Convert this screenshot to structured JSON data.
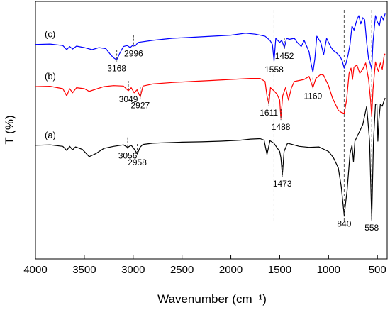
{
  "chart_data": {
    "type": "line",
    "title": "",
    "xlabel": "Wavenumber (cm⁻¹)",
    "ylabel": "T (%)",
    "xlim": [
      4000,
      400
    ],
    "x_reversed": true,
    "y_ticks_shown": false,
    "x_ticks": [
      "4000",
      "3500",
      "3000",
      "2500",
      "2000",
      "1500",
      "1000",
      "500"
    ],
    "series": [
      {
        "name": "(a)",
        "color": "#000000",
        "points": [
          [
            4000,
            38.0
          ],
          [
            3850,
            38.2
          ],
          [
            3720,
            37.5
          ],
          [
            3680,
            35.5
          ],
          [
            3650,
            37.5
          ],
          [
            3620,
            35.8
          ],
          [
            3590,
            37.2
          ],
          [
            3520,
            36.0
          ],
          [
            3450,
            32.5
          ],
          [
            3380,
            34.0
          ],
          [
            3300,
            36.5
          ],
          [
            3200,
            37.5
          ],
          [
            3100,
            38.2
          ],
          [
            3056,
            37.0
          ],
          [
            3020,
            38.0
          ],
          [
            2990,
            36.2
          ],
          [
            2958,
            33.8
          ],
          [
            2930,
            37.0
          ],
          [
            2900,
            38.4
          ],
          [
            2800,
            39.0
          ],
          [
            2700,
            39.2
          ],
          [
            2500,
            39.5
          ],
          [
            2300,
            39.7
          ],
          [
            2100,
            40.0
          ],
          [
            1900,
            40.5
          ],
          [
            1800,
            41.0
          ],
          [
            1700,
            41.2
          ],
          [
            1660,
            40.5
          ],
          [
            1630,
            33.5
          ],
          [
            1600,
            40.2
          ],
          [
            1560,
            39.0
          ],
          [
            1530,
            37.0
          ],
          [
            1500,
            35.0
          ],
          [
            1488,
            32.0
          ],
          [
            1473,
            23.5
          ],
          [
            1455,
            35.0
          ],
          [
            1420,
            39.0
          ],
          [
            1380,
            38.5
          ],
          [
            1300,
            37.5
          ],
          [
            1200,
            37.0
          ],
          [
            1100,
            37.2
          ],
          [
            1000,
            35.0
          ],
          [
            950,
            32.0
          ],
          [
            900,
            27.0
          ],
          [
            870,
            18.0
          ],
          [
            840,
            4.0
          ],
          [
            810,
            16.0
          ],
          [
            780,
            34.0
          ],
          [
            760,
            38.0
          ],
          [
            745,
            30.0
          ],
          [
            730,
            40.0
          ],
          [
            700,
            43.0
          ],
          [
            650,
            48.0
          ],
          [
            610,
            57.0
          ],
          [
            580,
            40.0
          ],
          [
            558,
            2.0
          ],
          [
            540,
            40.0
          ],
          [
            520,
            58.0
          ],
          [
            505,
            58.0
          ],
          [
            495,
            40.0
          ],
          [
            485,
            50.0
          ],
          [
            470,
            58.0
          ],
          [
            450,
            57.0
          ],
          [
            430,
            60.0
          ],
          [
            420,
            61.0
          ]
        ]
      },
      {
        "name": "(b)",
        "color": "#ff0000",
        "points": [
          [
            4000,
            66.5
          ],
          [
            3850,
            66.7
          ],
          [
            3720,
            65.5
          ],
          [
            3680,
            62.0
          ],
          [
            3650,
            65.5
          ],
          [
            3620,
            63.5
          ],
          [
            3580,
            66.0
          ],
          [
            3500,
            65.5
          ],
          [
            3450,
            64.2
          ],
          [
            3400,
            65.0
          ],
          [
            3300,
            66.5
          ],
          [
            3200,
            67.0
          ],
          [
            3100,
            66.8
          ],
          [
            3049,
            64.5
          ],
          [
            3020,
            66.0
          ],
          [
            2990,
            63.5
          ],
          [
            2960,
            65.0
          ],
          [
            2927,
            61.5
          ],
          [
            2900,
            66.8
          ],
          [
            2800,
            67.8
          ],
          [
            2600,
            68.5
          ],
          [
            2400,
            69.0
          ],
          [
            2200,
            69.5
          ],
          [
            2000,
            70.0
          ],
          [
            1800,
            70.5
          ],
          [
            1700,
            70.5
          ],
          [
            1650,
            69.0
          ],
          [
            1630,
            62.0
          ],
          [
            1611,
            58.0
          ],
          [
            1595,
            66.0
          ],
          [
            1560,
            64.5
          ],
          [
            1530,
            63.0
          ],
          [
            1500,
            60.0
          ],
          [
            1488,
            51.0
          ],
          [
            1470,
            62.0
          ],
          [
            1440,
            66.0
          ],
          [
            1410,
            60.0
          ],
          [
            1380,
            66.0
          ],
          [
            1350,
            69.0
          ],
          [
            1300,
            69.5
          ],
          [
            1250,
            70.0
          ],
          [
            1200,
            71.5
          ],
          [
            1160,
            66.0
          ],
          [
            1130,
            70.5
          ],
          [
            1080,
            72.5
          ],
          [
            1050,
            72.0
          ],
          [
            1000,
            67.0
          ],
          [
            960,
            61.0
          ],
          [
            930,
            58.0
          ],
          [
            900,
            55.0
          ],
          [
            870,
            54.0
          ],
          [
            840,
            53.5
          ],
          [
            815,
            60.0
          ],
          [
            790,
            73.0
          ],
          [
            770,
            75.5
          ],
          [
            755,
            70.0
          ],
          [
            740,
            76.0
          ],
          [
            710,
            77.0
          ],
          [
            680,
            73.0
          ],
          [
            650,
            75.0
          ],
          [
            620,
            78.0
          ],
          [
            590,
            70.0
          ],
          [
            570,
            60.0
          ],
          [
            558,
            52.0
          ],
          [
            545,
            65.0
          ],
          [
            520,
            78.5
          ],
          [
            505,
            76.0
          ],
          [
            490,
            74.0
          ],
          [
            470,
            78.0
          ],
          [
            450,
            75.0
          ],
          [
            430,
            82.0
          ],
          [
            420,
            82.5
          ]
        ]
      },
      {
        "name": "(c)",
        "color": "#0000ff",
        "points": [
          [
            4000,
            87.0
          ],
          [
            3850,
            87.2
          ],
          [
            3720,
            86.5
          ],
          [
            3680,
            84.5
          ],
          [
            3650,
            86.0
          ],
          [
            3620,
            84.8
          ],
          [
            3580,
            86.2
          ],
          [
            3500,
            85.5
          ],
          [
            3420,
            84.5
          ],
          [
            3350,
            85.5
          ],
          [
            3280,
            85.0
          ],
          [
            3230,
            82.0
          ],
          [
            3200,
            80.5
          ],
          [
            3168,
            79.5
          ],
          [
            3140,
            82.5
          ],
          [
            3100,
            86.0
          ],
          [
            3060,
            86.5
          ],
          [
            3030,
            85.5
          ],
          [
            3000,
            86.8
          ],
          [
            2980,
            86.2
          ],
          [
            2950,
            88.0
          ],
          [
            2800,
            89.0
          ],
          [
            2600,
            90.0
          ],
          [
            2400,
            90.5
          ],
          [
            2200,
            91.0
          ],
          [
            2000,
            91.5
          ],
          [
            1850,
            92.5
          ],
          [
            1750,
            92.0
          ],
          [
            1650,
            91.0
          ],
          [
            1600,
            89.0
          ],
          [
            1575,
            87.0
          ],
          [
            1558,
            79.0
          ],
          [
            1540,
            90.0
          ],
          [
            1500,
            88.0
          ],
          [
            1480,
            89.0
          ],
          [
            1452,
            85.5
          ],
          [
            1430,
            90.0
          ],
          [
            1400,
            89.5
          ],
          [
            1350,
            90.0
          ],
          [
            1320,
            88.0
          ],
          [
            1280,
            86.0
          ],
          [
            1250,
            89.0
          ],
          [
            1200,
            83.5
          ],
          [
            1180,
            78.0
          ],
          [
            1160,
            73.5
          ],
          [
            1140,
            80.0
          ],
          [
            1120,
            91.0
          ],
          [
            1080,
            88.0
          ],
          [
            1050,
            82.0
          ],
          [
            1020,
            90.0
          ],
          [
            980,
            86.0
          ],
          [
            950,
            84.0
          ],
          [
            920,
            83.0
          ],
          [
            880,
            81.0
          ],
          [
            860,
            79.0
          ],
          [
            840,
            75.5
          ],
          [
            820,
            78.0
          ],
          [
            800,
            82.0
          ],
          [
            780,
            87.0
          ],
          [
            760,
            96.0
          ],
          [
            740,
            94.0
          ],
          [
            710,
            99.0
          ],
          [
            690,
            101.0
          ],
          [
            670,
            97.0
          ],
          [
            650,
            100.0
          ],
          [
            630,
            99.0
          ],
          [
            610,
            88.0
          ],
          [
            590,
            80.0
          ],
          [
            575,
            78.0
          ],
          [
            558,
            75.0
          ],
          [
            545,
            88.0
          ],
          [
            520,
            101.0
          ],
          [
            500,
            98.0
          ],
          [
            480,
            96.0
          ],
          [
            460,
            101.0
          ],
          [
            440,
            99.0
          ],
          [
            420,
            102.0
          ]
        ]
      }
    ],
    "annotations": [
      {
        "label": "3056",
        "x": 3056,
        "series": "(a)"
      },
      {
        "label": "2958",
        "x": 2958,
        "series": "(a)"
      },
      {
        "label": "1473",
        "x": 1473,
        "series": "(a)"
      },
      {
        "label": "840",
        "x": 840,
        "series": "(a)"
      },
      {
        "label": "558",
        "x": 558,
        "series": "(a)"
      },
      {
        "label": "3049",
        "x": 3049,
        "series": "(b)"
      },
      {
        "label": "2927",
        "x": 2927,
        "series": "(b)"
      },
      {
        "label": "1611",
        "x": 1611,
        "series": "(b)"
      },
      {
        "label": "1488",
        "x": 1488,
        "series": "(b)"
      },
      {
        "label": "1160",
        "x": 1160,
        "series": "(b)"
      },
      {
        "label": "3168",
        "x": 3168,
        "series": "(c)"
      },
      {
        "label": "2996",
        "x": 2996,
        "series": "(c)"
      },
      {
        "label": "1558",
        "x": 1558,
        "series": "(c)"
      },
      {
        "label": "1452",
        "x": 1452,
        "series": "(c)"
      }
    ],
    "reference_lines": [
      840,
      558,
      1558
    ]
  }
}
